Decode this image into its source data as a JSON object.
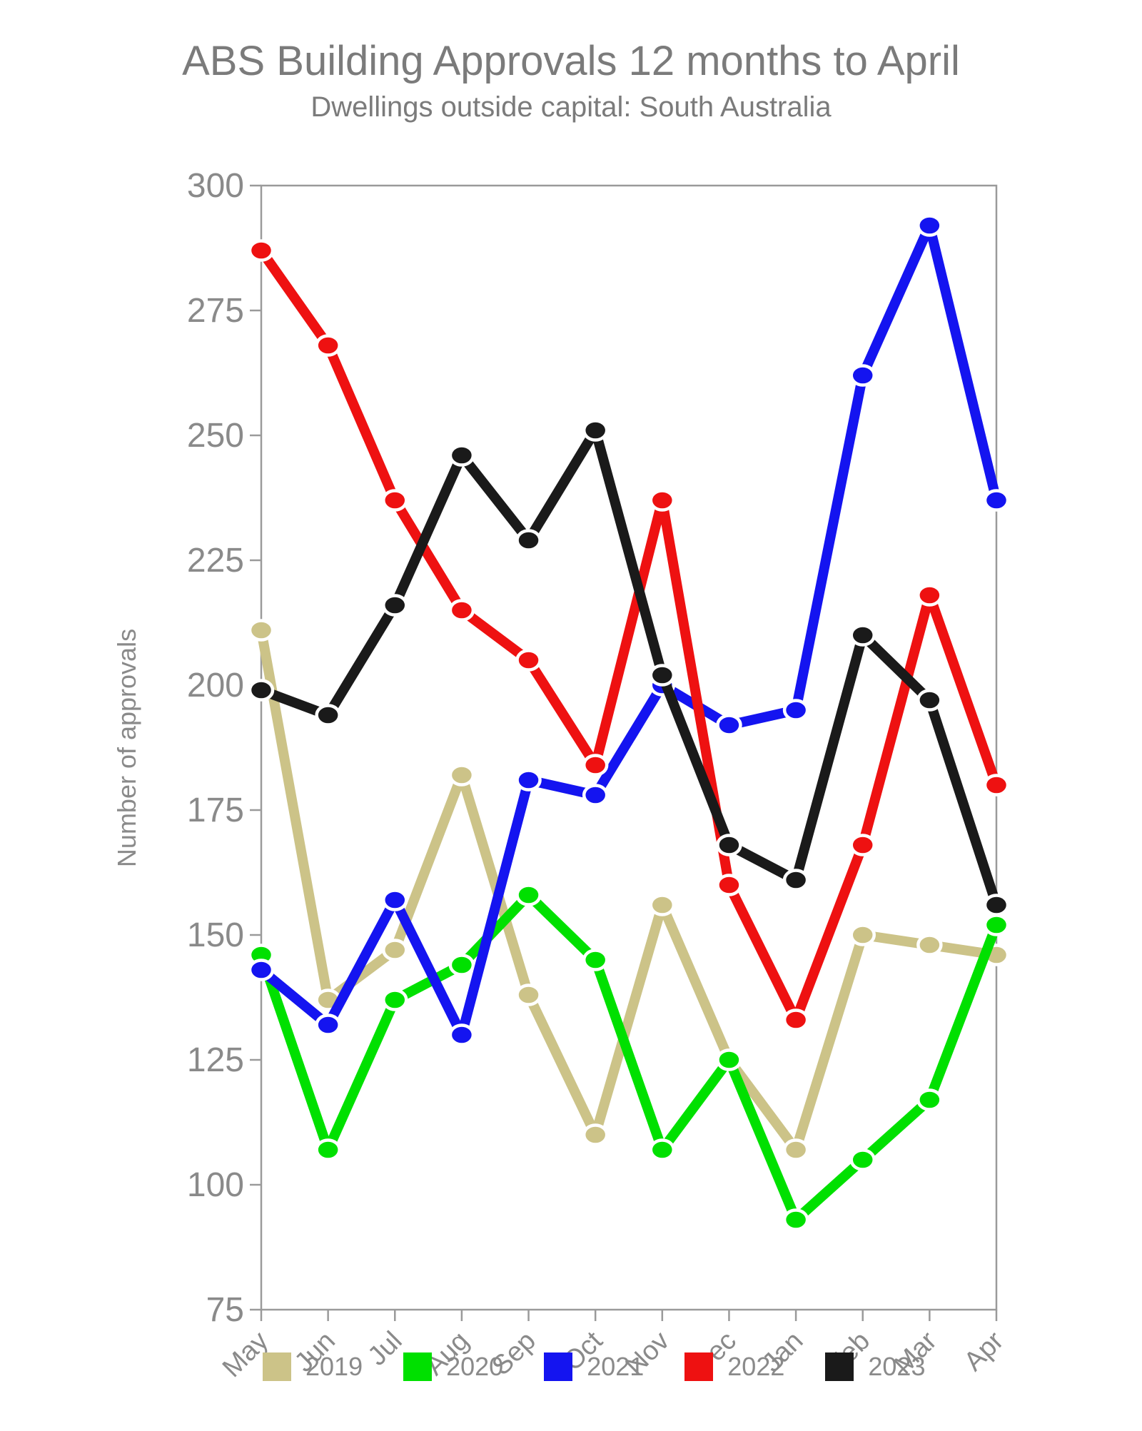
{
  "chart_data": {
    "type": "line",
    "title": "ABS Building Approvals 12 months to April",
    "subtitle": "Dwellings outside capital: South Australia",
    "ylabel": "Number of approvals",
    "xlabel": "",
    "categories": [
      "May",
      "Jun",
      "Jul",
      "Aug",
      "Sep",
      "Oct",
      "Nov",
      "Dec",
      "Jan",
      "Feb",
      "Mar",
      "Apr"
    ],
    "ylim": [
      75,
      300
    ],
    "yticks": [
      300,
      275,
      250,
      225,
      200,
      175,
      150,
      125,
      100,
      75
    ],
    "grid": false,
    "legend_position": "bottom",
    "series": [
      {
        "name": "2019",
        "color": "#ccc388",
        "values": [
          211,
          137,
          147,
          182,
          138,
          110,
          156,
          125,
          107,
          150,
          148,
          146
        ]
      },
      {
        "name": "2020",
        "color": "#00e000",
        "values": [
          146,
          107,
          137,
          144,
          158,
          145,
          107,
          125,
          93,
          105,
          117,
          152
        ]
      },
      {
        "name": "2021",
        "color": "#1414f0",
        "values": [
          143,
          132,
          157,
          130,
          181,
          178,
          200,
          192,
          195,
          262,
          292,
          237
        ]
      },
      {
        "name": "2022",
        "color": "#ee1111",
        "values": [
          287,
          268,
          237,
          215,
          205,
          184,
          237,
          160,
          133,
          168,
          218,
          180
        ]
      },
      {
        "name": "2023",
        "color": "#1a1a1a",
        "values": [
          199,
          194,
          216,
          246,
          229,
          251,
          202,
          168,
          161,
          210,
          197,
          156
        ]
      }
    ],
    "colors": {
      "axis": "#9a9a9a",
      "tick_labels": "#8a8a8a",
      "title_text": "#7b7b7b"
    }
  }
}
